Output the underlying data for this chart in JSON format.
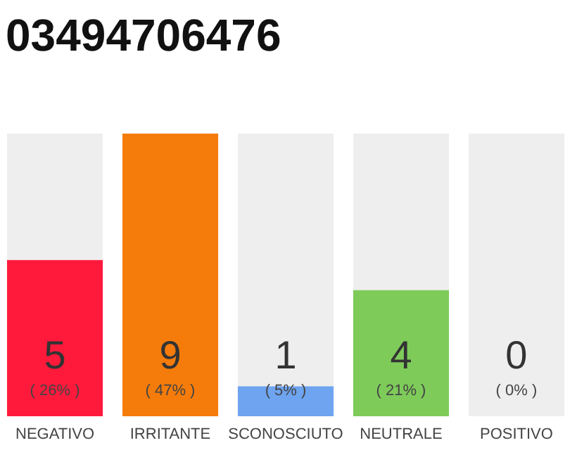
{
  "chart_data": {
    "type": "bar",
    "title": "03494706476",
    "stacked": true,
    "categories": [
      "NEGATIVO",
      "IRRITANTE",
      "SCONOSCIUTO",
      "NEUTRALE",
      "POSITIVO"
    ],
    "series": [
      {
        "values": [
          26,
          47,
          5,
          21,
          0
        ],
        "colors": [
          "#ff1a3c",
          "#f57c0b",
          "#6ea4f0",
          "#7ecb5a",
          "#cccccc"
        ],
        "value_labels": [
          "( 26% )",
          "( 47% )",
          "( 5% )",
          "( 21% )",
          null
        ]
      },
      {
        "values": [
          21,
          0,
          42,
          26,
          47
        ],
        "color": "#eeeeee"
      }
    ],
    "annotations": [
      "5",
      "9",
      "1",
      "4",
      "0",
      "( 0% )"
    ],
    "tick_labels": "x",
    "grid": false
  }
}
